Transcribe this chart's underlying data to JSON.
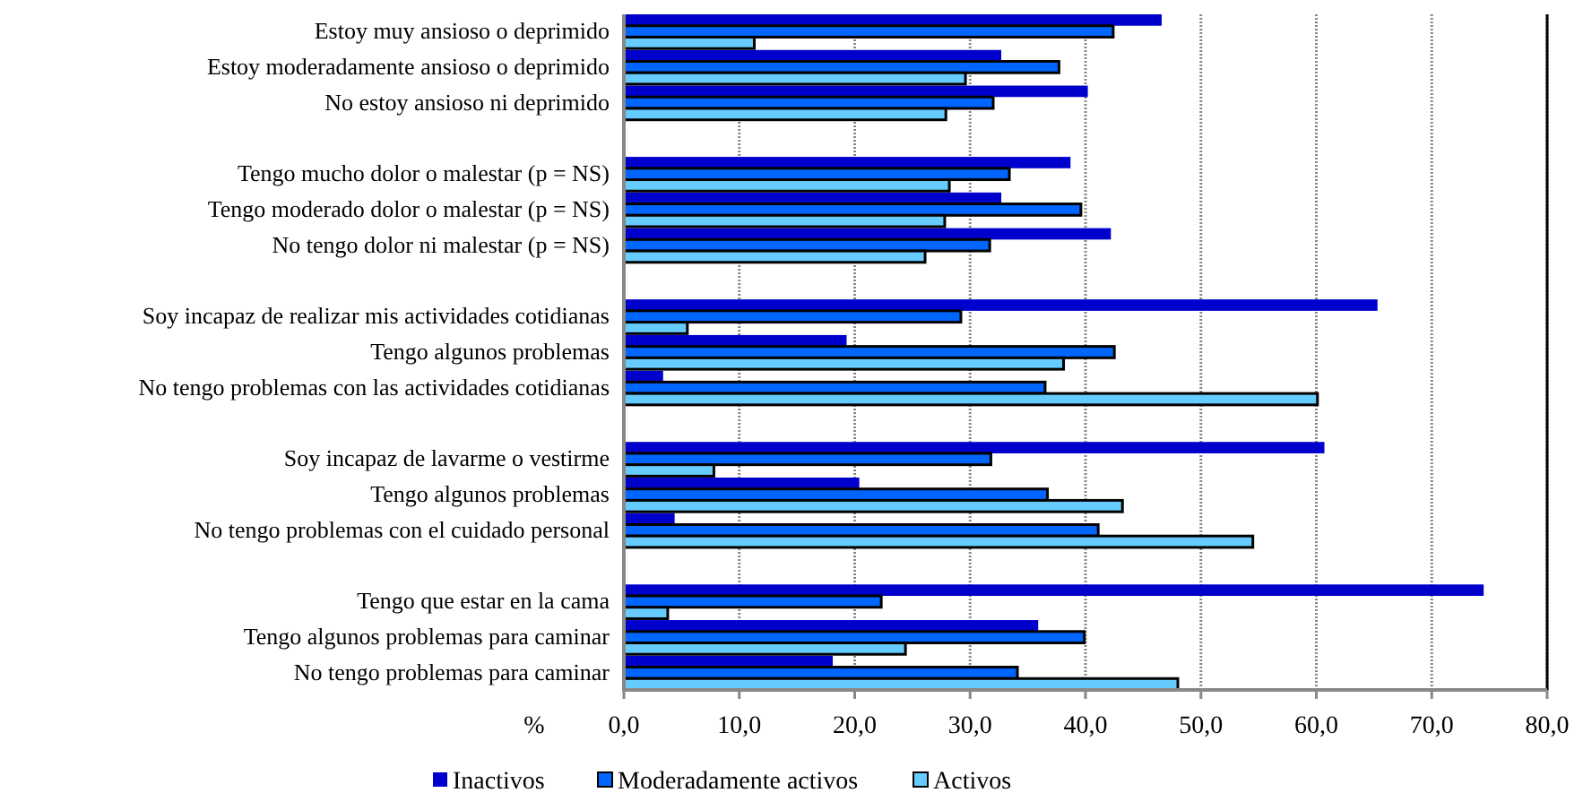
{
  "chart_data": {
    "type": "bar",
    "orientation": "horizontal",
    "xlabel": "%",
    "categories": [
      "Estoy muy ansioso o deprimido",
      "Estoy moderadamente  ansioso o deprimido",
      "No estoy ansioso ni deprimido",
      null,
      "Tengo mucho dolor o malestar (p = NS)",
      "Tengo moderado dolor o malestar (p = NS)",
      "No tengo dolor ni malestar (p = NS)",
      null,
      "Soy incapaz de realizar mis actividades cotidianas",
      "Tengo algunos problemas",
      "No tengo problemas con las actividades cotidianas",
      null,
      "Soy incapaz de lavarme o vestirme",
      "Tengo algunos problemas",
      "No tengo problemas con el cuidado personal",
      null,
      "Tengo que estar en la cama",
      "Tengo algunos problemas para caminar",
      "No tengo problemas para caminar"
    ],
    "series": [
      {
        "name": "Inactivos",
        "color": "#0000cc",
        "values": [
          46.6,
          32.7,
          40.2,
          null,
          38.7,
          32.7,
          42.2,
          null,
          65.3,
          19.3,
          3.4,
          null,
          60.7,
          20.4,
          4.4,
          null,
          74.5,
          35.9,
          18.1
        ]
      },
      {
        "name": "Moderadamente activos",
        "color": "#0066ff",
        "values": [
          42.4,
          37.7,
          32.0,
          null,
          33.4,
          39.6,
          31.7,
          null,
          29.2,
          42.5,
          36.5,
          null,
          31.8,
          36.7,
          41.1,
          null,
          22.3,
          39.9,
          34.1
        ]
      },
      {
        "name": "Activos",
        "color": "#66ccff",
        "values": [
          11.3,
          29.6,
          27.9,
          null,
          28.2,
          27.8,
          26.1,
          null,
          5.5,
          38.1,
          60.1,
          null,
          7.8,
          43.2,
          54.5,
          null,
          3.8,
          24.4,
          48.0
        ]
      }
    ],
    "xlim": [
      0,
      80
    ],
    "xticks": [
      {
        "value": 0,
        "label": "0,0"
      },
      {
        "value": 10,
        "label": "10,0"
      },
      {
        "value": 20,
        "label": "20,0"
      },
      {
        "value": 30,
        "label": "30,0"
      },
      {
        "value": 40,
        "label": "40,0"
      },
      {
        "value": 50,
        "label": "50,0"
      },
      {
        "value": 60,
        "label": "60,0"
      },
      {
        "value": 70,
        "label": "70,0"
      },
      {
        "value": 80,
        "label": "80,0"
      }
    ],
    "grid": "x",
    "legend": "bottom"
  }
}
